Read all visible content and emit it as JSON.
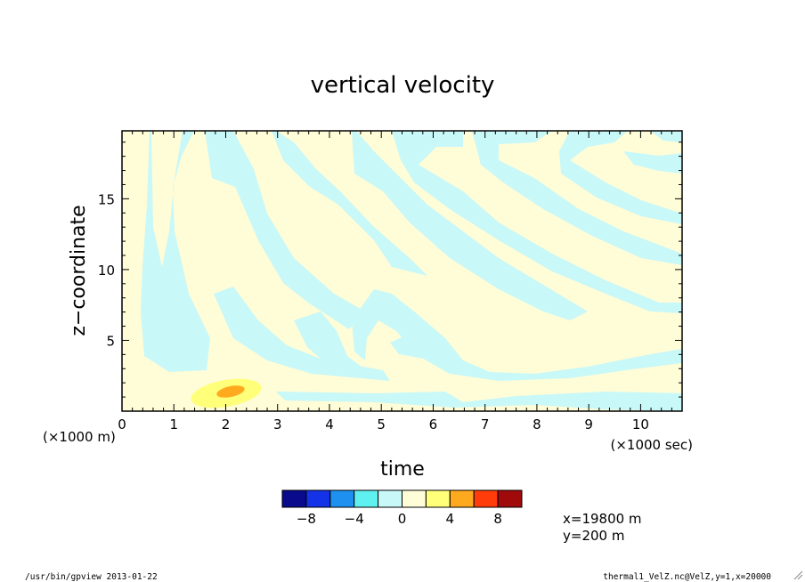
{
  "chart_data": {
    "type": "heatmap",
    "title": "vertical velocity",
    "xlabel": "time",
    "x_unit": "(×1000 sec)",
    "ylabel": "z−coordinate",
    "y_unit": "(×1000 m)",
    "xlim": [
      0,
      10.8
    ],
    "ylim": [
      0,
      19.8
    ],
    "x_ticks": [
      "0",
      "1",
      "2",
      "3",
      "4",
      "5",
      "6",
      "7",
      "8",
      "9",
      "10"
    ],
    "y_ticks": [
      "5",
      "10",
      "15"
    ],
    "colorbar": {
      "levels": [
        -10,
        -8,
        -6,
        -4,
        -2,
        0,
        2,
        4,
        6,
        8,
        10
      ],
      "labels": [
        "−8",
        "−4",
        "0",
        "4",
        "8"
      ],
      "colors": [
        "#0a0a8c",
        "#1432e6",
        "#1e90f0",
        "#5ff0f0",
        "#c8f8f8",
        "#fffcd8",
        "#ffff7a",
        "#ffaa1e",
        "#ff3c0a",
        "#a00a0a"
      ]
    },
    "field": {
      "lobe_period_sec": 2000,
      "bands_slope_m_per_sec": 5.5,
      "warm_core": {
        "center_time": 2100,
        "center_z": 1200,
        "peak": 5.5
      }
    },
    "annotations": [
      "x=19800 m",
      "y=200 m"
    ]
  },
  "footer": {
    "left": "/usr/bin/gpview  2013-01-22",
    "right": "thermal1_VelZ.nc@VelZ,y=1,x=20000"
  }
}
